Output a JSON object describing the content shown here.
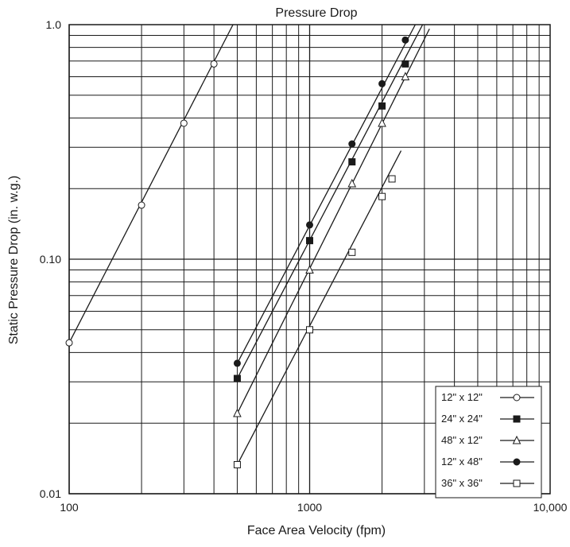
{
  "chart_data": {
    "type": "line",
    "title": "Pressure Drop",
    "xlabel": "Face Area Velocity (fpm)",
    "ylabel": "Static Pressure Drop (in. w.g.)",
    "x_scale": "log",
    "y_scale": "log",
    "xlim": [
      100,
      10000
    ],
    "ylim": [
      0.01,
      1.0
    ],
    "x_tick_labels": [
      {
        "value": 100,
        "label": "100"
      },
      {
        "value": 1000,
        "label": "1000"
      },
      {
        "value": 10000,
        "label": "10,000"
      }
    ],
    "y_tick_labels": [
      {
        "value": 1.0,
        "label": "1.0"
      },
      {
        "value": 0.1,
        "label": "0.10"
      },
      {
        "value": 0.01,
        "label": "0.01"
      }
    ],
    "grid": true,
    "legend_position": "bottom-right",
    "series": [
      {
        "name": "12\" x 12\"",
        "marker": "circle-open",
        "points": [
          [
            100,
            0.044
          ],
          [
            200,
            0.17
          ],
          [
            300,
            0.38
          ],
          [
            400,
            0.68
          ]
        ],
        "line": [
          [
            100,
            0.044
          ],
          [
            480,
            1.0
          ]
        ]
      },
      {
        "name": "24\" x 24\"",
        "marker": "square-filled",
        "points": [
          [
            500,
            0.031
          ],
          [
            1000,
            0.12
          ],
          [
            1500,
            0.26
          ],
          [
            2000,
            0.45
          ],
          [
            2500,
            0.68
          ]
        ],
        "line": [
          [
            500,
            0.031
          ],
          [
            2950,
            1.0
          ]
        ]
      },
      {
        "name": "48\" x 12\"",
        "marker": "triangle-open",
        "points": [
          [
            500,
            0.022
          ],
          [
            1000,
            0.09
          ],
          [
            1500,
            0.21
          ],
          [
            2000,
            0.38
          ],
          [
            2500,
            0.6
          ]
        ],
        "line": [
          [
            500,
            0.022
          ],
          [
            3150,
            0.96
          ]
        ]
      },
      {
        "name": "12\" x 48\"",
        "marker": "circle-filled",
        "points": [
          [
            500,
            0.036
          ],
          [
            1000,
            0.14
          ],
          [
            1500,
            0.31
          ],
          [
            2000,
            0.56
          ],
          [
            2500,
            0.86
          ]
        ],
        "line": [
          [
            500,
            0.036
          ],
          [
            2750,
            1.0
          ]
        ]
      },
      {
        "name": "36\" x 36\"",
        "marker": "square-open",
        "points": [
          [
            500,
            0.0133
          ],
          [
            1000,
            0.05
          ],
          [
            1500,
            0.107
          ],
          [
            2000,
            0.185
          ],
          [
            2200,
            0.22
          ]
        ],
        "line": [
          [
            500,
            0.0133
          ],
          [
            2400,
            0.29
          ]
        ]
      }
    ]
  }
}
